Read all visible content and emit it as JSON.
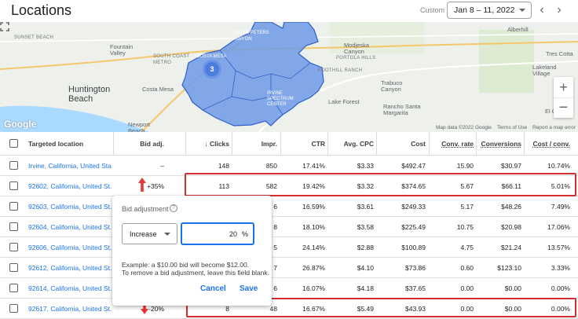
{
  "header": {
    "title": "Locations",
    "custom_label": "Custom",
    "date_range": "Jan 8 – 11, 2022",
    "prev_icon": "chevron-left-icon",
    "next_icon": "chevron-right-icon"
  },
  "map": {
    "labels": {
      "sunset_beach": "SUNSET BEACH",
      "fountain_valley": "Fountain\nValley",
      "south_coast_metro": "SOUTH COAST\nMETRO",
      "huntington_beach": "Huntington\nBeach",
      "costa_mesa": "Costa Mesa",
      "newport_beach": "Newport\nBeach",
      "lower_peters_canyon": "LOWER PETERS\nCANYON",
      "irvine_spectrum": "IRVINE\nSPECTRUM\nCENTER",
      "portola_hills": "PORTOLA HILLS",
      "modjeska_canyon": "Modjeska\nCanyon",
      "foothill_ranch": "FOOTHILL RANCH",
      "trabuco_canyon": "Trabuco\nCanyon",
      "lake_forest": "Lake Forest",
      "rancho_santa_margarita": "Rancho Santa\nMargarita",
      "alberhill": "Alberhill",
      "lakeland_village": "Lakeland\nVillage",
      "tres_cotta": "Tres Cotta",
      "el_cariso": "El Cariso",
      "costa_label": "COSTA MESA"
    },
    "cluster_count": "3",
    "google": "Google",
    "footer": {
      "map_data": "Map data ©2022 Google",
      "terms": "Terms of Use",
      "report": "Report a map error"
    },
    "zoom_in": "+",
    "zoom_out": "−",
    "colors": {
      "region_fill": "#6d9ae8",
      "region_stroke": "#2f5fc9",
      "land": "#eef0eb"
    }
  },
  "table": {
    "headers": {
      "location": "Targeted location",
      "bid_adj": "Bid adj.",
      "clicks": "↓ Clicks",
      "impr": "Impr.",
      "ctr": "CTR",
      "avg_cpc": "Avg. CPC",
      "cost": "Cost",
      "conv_rate": "Conv. rate",
      "conversions": "Conversions",
      "cost_conv": "Cost / conv."
    },
    "rows": [
      {
        "location": "Irvine, California, United Stat...",
        "bid_adj": "–",
        "clicks": "148",
        "impr": "850",
        "ctr": "17.41%",
        "avg_cpc": "$3.33",
        "cost": "$492.47",
        "conv_rate": "15.90",
        "conversions": "$30.97",
        "cost_conv": "10.74%"
      },
      {
        "location": "92602, California, United St...",
        "bid_adj": "+35%",
        "clicks": "113",
        "impr": "582",
        "ctr": "19.42%",
        "avg_cpc": "$3.32",
        "cost": "$374.65",
        "conv_rate": "5.67",
        "conversions": "$66.11",
        "cost_conv": "5.01%"
      },
      {
        "location": "92603, California, United St...",
        "bid_adj": "",
        "clicks": "",
        "impr": "6",
        "ctr": "16.59%",
        "avg_cpc": "$3.61",
        "cost": "$249.33",
        "conv_rate": "5.17",
        "conversions": "$48.26",
        "cost_conv": "7.49%"
      },
      {
        "location": "92604, California, United St...",
        "bid_adj": "",
        "clicks": "",
        "impr": "8",
        "ctr": "18.10%",
        "avg_cpc": "$3.58",
        "cost": "$225.49",
        "conv_rate": "10.75",
        "conversions": "$20.98",
        "cost_conv": "17.06%"
      },
      {
        "location": "92606, California, United St...",
        "bid_adj": "",
        "clicks": "",
        "impr": "5",
        "ctr": "24.14%",
        "avg_cpc": "$2.88",
        "cost": "$100.89",
        "conv_rate": "4.75",
        "conversions": "$21.24",
        "cost_conv": "13.57%"
      },
      {
        "location": "92612, California, United St...",
        "bid_adj": "",
        "clicks": "",
        "impr": "7",
        "ctr": "26.87%",
        "avg_cpc": "$4.10",
        "cost": "$73.86",
        "conv_rate": "0.60",
        "conversions": "$123.10",
        "cost_conv": "3.33%"
      },
      {
        "location": "92614, California, United St...",
        "bid_adj": "",
        "clicks": "",
        "impr": "6",
        "ctr": "16.07%",
        "avg_cpc": "$4.18",
        "cost": "$37.65",
        "conv_rate": "0.00",
        "conversions": "$0.00",
        "cost_conv": "0.00%"
      },
      {
        "location": "92617, California, United St...",
        "bid_adj": "-20%",
        "clicks": "8",
        "impr": "48",
        "ctr": "16.67%",
        "avg_cpc": "$5.49",
        "cost": "$43.93",
        "conv_rate": "0.00",
        "conversions": "$0.00",
        "cost_conv": "0.00%"
      }
    ]
  },
  "popup": {
    "title": "Bid adjustment",
    "help_icon": "help-circle-icon",
    "select_value": "Increase",
    "input_value": "20",
    "input_suffix": "%",
    "note": "Example: a $10.00 bid will become $12.00.\nTo remove a bid adjustment, leave this field blank.",
    "cancel": "Cancel",
    "save": "Save"
  },
  "annotation_colors": {
    "highlight": "#d32f2f",
    "link": "#1a73e8"
  }
}
